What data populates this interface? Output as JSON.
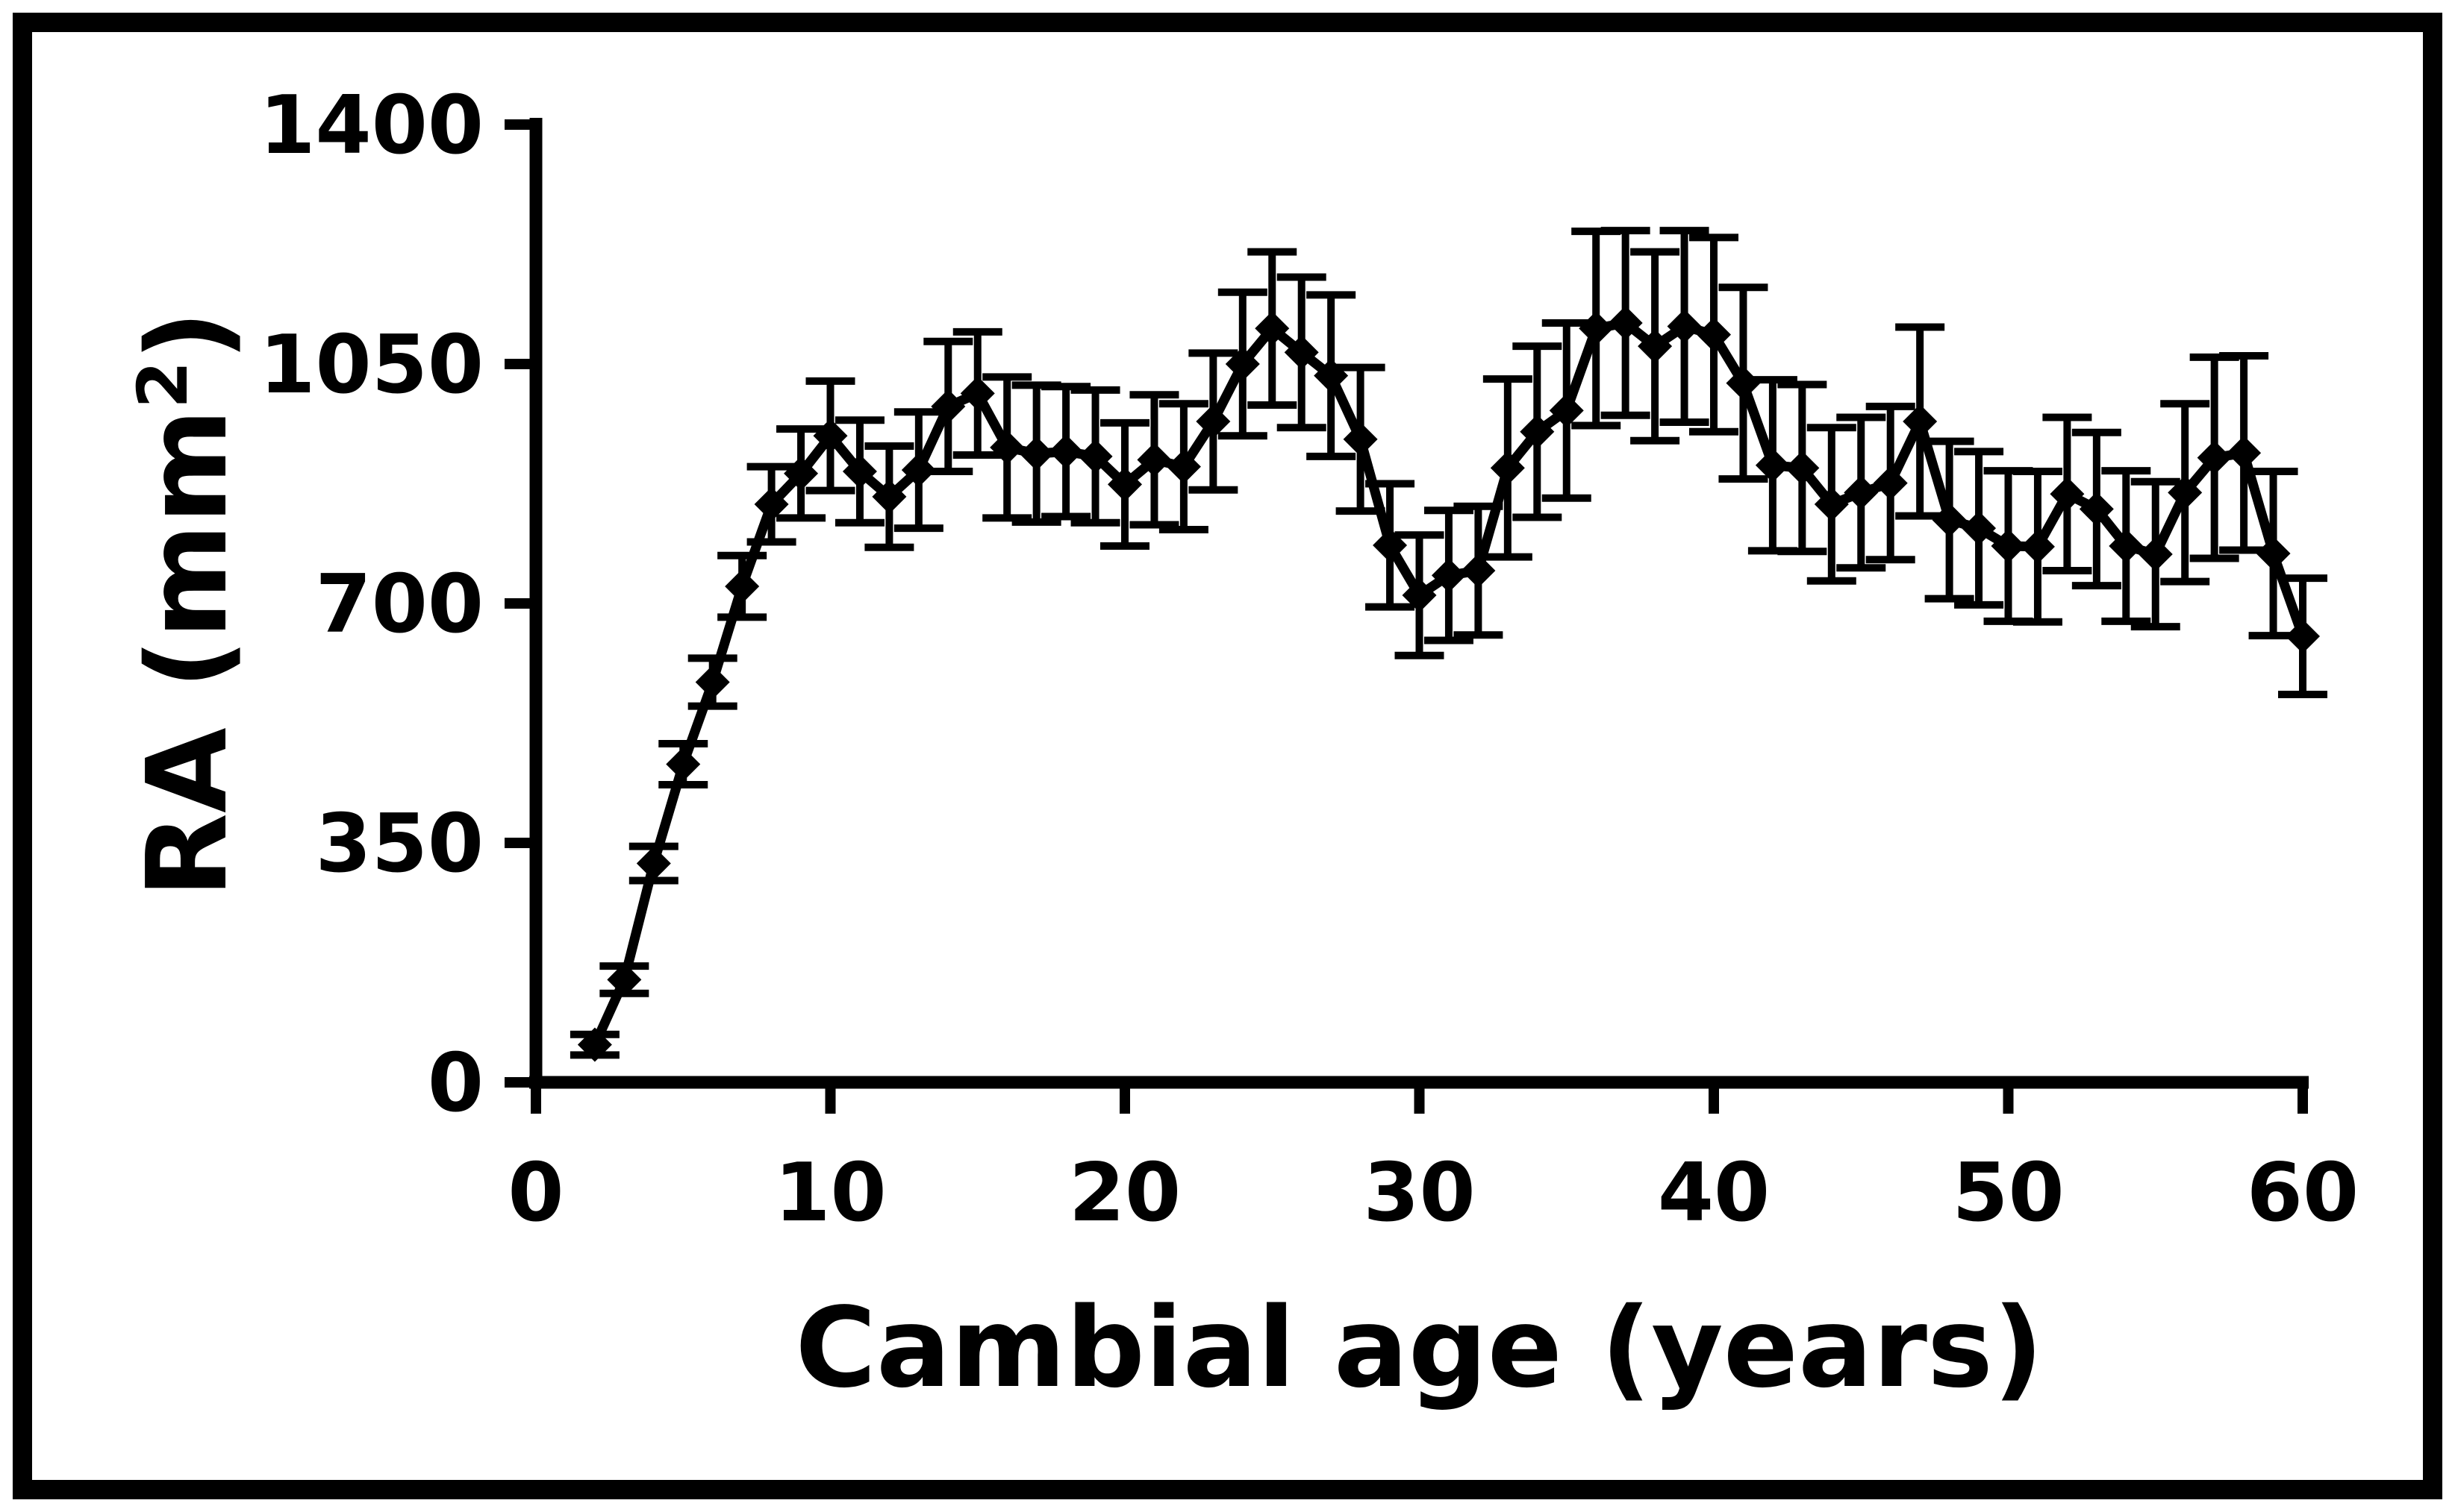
{
  "colors": {
    "series": "#000000",
    "background": "#ffffff",
    "frame": "#000000"
  },
  "chart_data": {
    "type": "line",
    "title": "",
    "xlabel": "Cambial age (years)",
    "ylabel_main": "RA (mm",
    "ylabel_sup": "2",
    "ylabel_close": ")",
    "marker": "diamond",
    "error_bars": true,
    "legend": "none",
    "grid": false,
    "xlim": [
      0,
      60
    ],
    "ylim": [
      0,
      1400
    ],
    "x_ticks": [
      0,
      10,
      20,
      30,
      40,
      50,
      60
    ],
    "y_ticks": [
      0,
      350,
      700,
      1050,
      1400
    ],
    "x": [
      2,
      3,
      4,
      5,
      6,
      7,
      8,
      9,
      10,
      11,
      12,
      13,
      14,
      15,
      16,
      17,
      18,
      19,
      20,
      21,
      22,
      23,
      24,
      25,
      26,
      27,
      28,
      29,
      30,
      31,
      32,
      33,
      34,
      35,
      36,
      37,
      38,
      39,
      40,
      41,
      42,
      43,
      44,
      45,
      46,
      47,
      48,
      49,
      50,
      51,
      52,
      53,
      54,
      55,
      56,
      57,
      58,
      59,
      60
    ],
    "values": [
      55,
      150,
      320,
      465,
      585,
      725,
      845,
      890,
      945,
      893,
      856,
      895,
      988,
      1007,
      928,
      919,
      922,
      915,
      874,
      910,
      900,
      966,
      1050,
      1102,
      1067,
      1033,
      940,
      785,
      712,
      741,
      748,
      898,
      951,
      982,
      1102,
      1110,
      1076,
      1105,
      1093,
      1022,
      902,
      898,
      845,
      862,
      876,
      966,
      822,
      810,
      784,
      783,
      860,
      838,
      784,
      772,
      862,
      913,
      920,
      773,
      652
    ],
    "errors": [
      15,
      20,
      25,
      30,
      35,
      45,
      55,
      65,
      80,
      75,
      74,
      85,
      95,
      90,
      103,
      100,
      95,
      97,
      90,
      95,
      92,
      100,
      105,
      112,
      110,
      118,
      105,
      90,
      88,
      95,
      94,
      130,
      125,
      128,
      142,
      135,
      138,
      140,
      142,
      140,
      125,
      122,
      112,
      110,
      112,
      138,
      115,
      112,
      110,
      110,
      112,
      112,
      110,
      106,
      130,
      147,
      142,
      120,
      85
    ]
  }
}
